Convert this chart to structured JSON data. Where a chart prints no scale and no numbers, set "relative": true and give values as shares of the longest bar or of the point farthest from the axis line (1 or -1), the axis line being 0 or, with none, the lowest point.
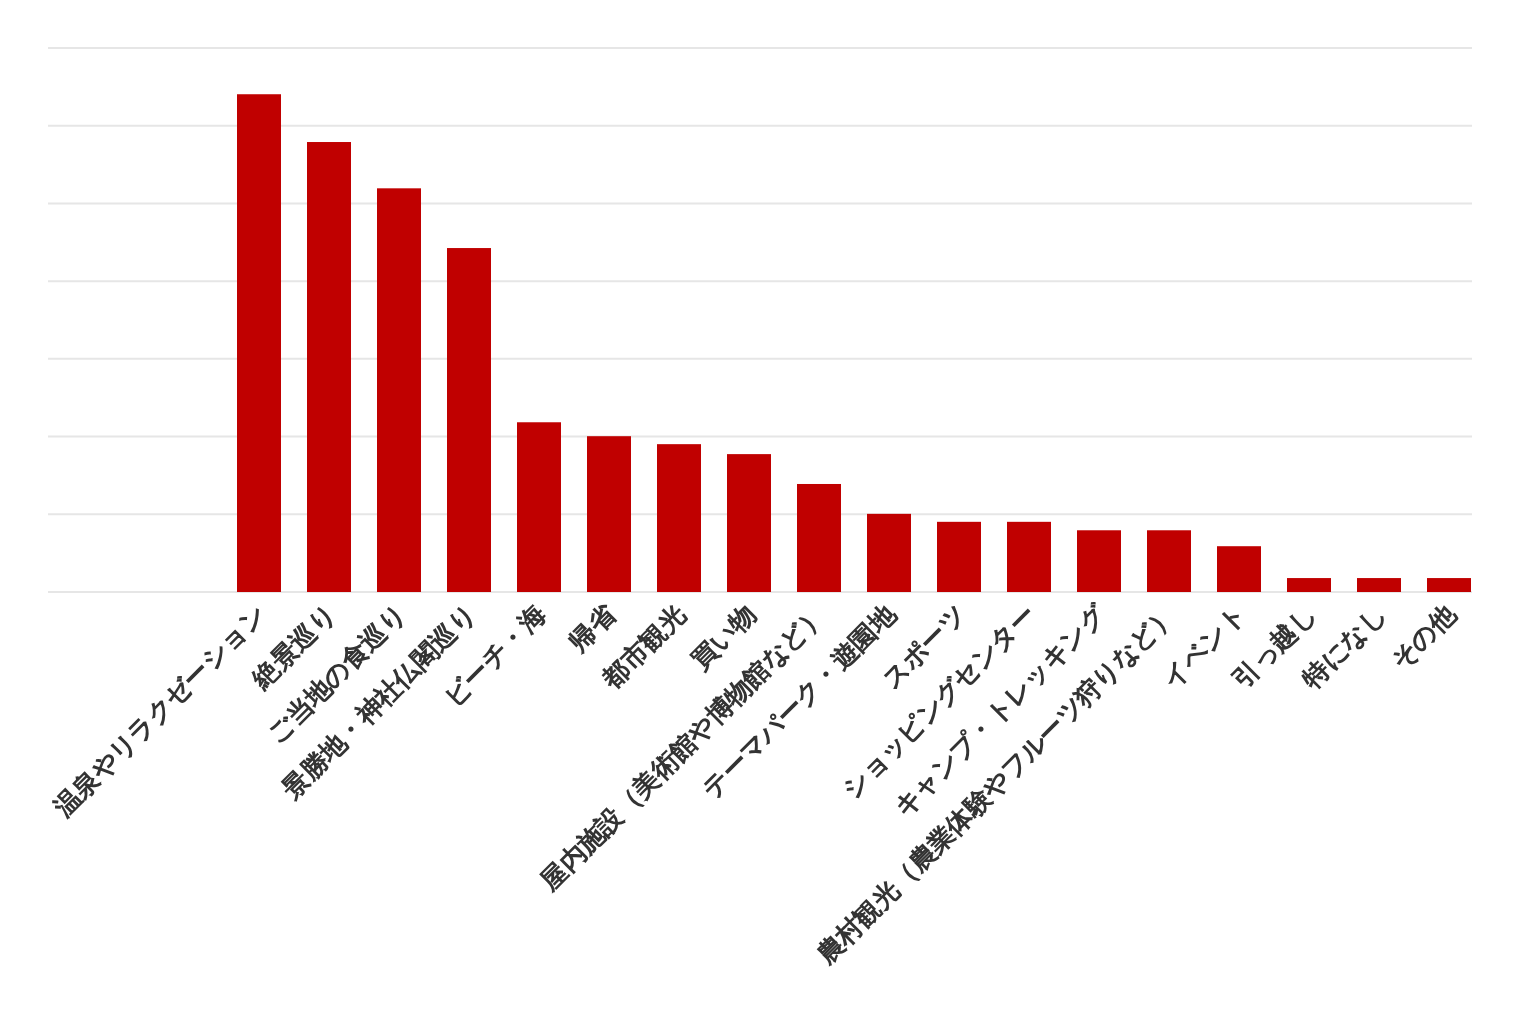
{
  "chart_data": {
    "type": "bar",
    "relative": true,
    "grid": "y",
    "color": "#c00000",
    "categories": [
      "温泉やリラクゼーション",
      "絶景巡り",
      "ご当地の食巡り",
      "景勝地・神社仏閣巡り",
      "ビーチ・海",
      "帰省",
      "都市観光",
      "買い物",
      "屋内施設（美術館や博物館など）",
      "テーマパーク・遊園地",
      "スポーツ",
      "ショッピングセンター",
      "キャンプ・トレッキング",
      "農村観光（農業体験やフルーツ狩りなど）",
      "イベント",
      "引っ越し",
      "特になし",
      "その他"
    ],
    "values": [
      1,
      0.904,
      0.811,
      0.691,
      0.341,
      0.313,
      0.297,
      0.277,
      0.217,
      0.157,
      0.141,
      0.141,
      0.124,
      0.124,
      0.092,
      0.028,
      0.028,
      0.028
    ]
  }
}
